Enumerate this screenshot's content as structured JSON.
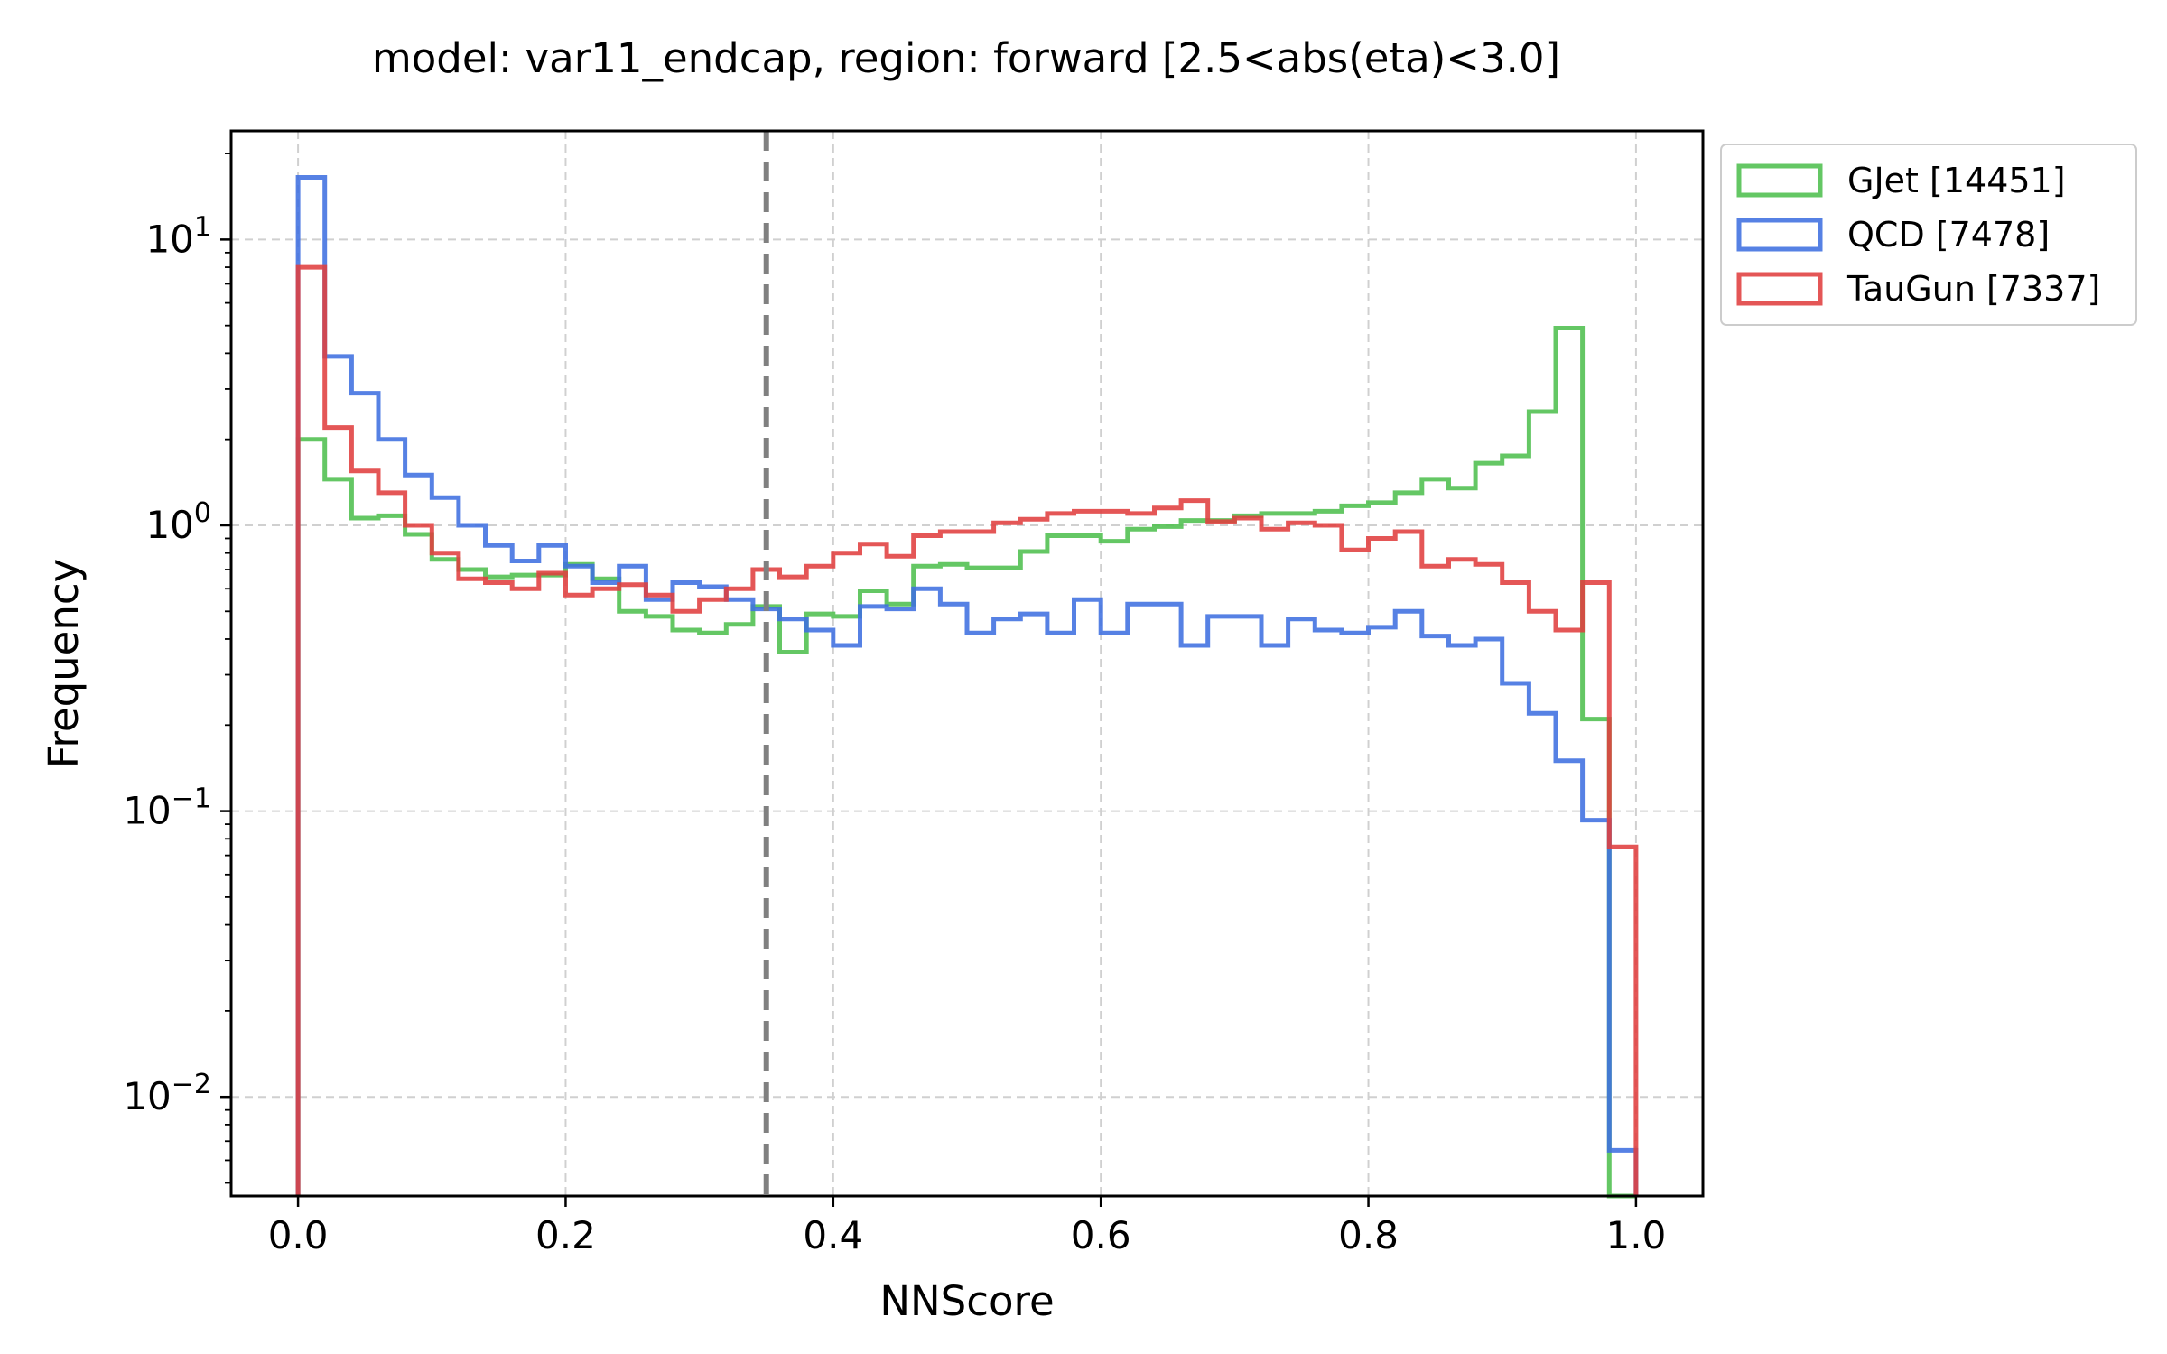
{
  "chart_data": {
    "type": "histogram-step",
    "title": "model: var11_endcap, region: forward [2.5<abs(eta)<3.0]",
    "xlabel": "NNScore",
    "ylabel": "Frequency",
    "xlim": [
      -0.05,
      1.05
    ],
    "ylim": [
      0.0045,
      24
    ],
    "yscale": "log",
    "grid": true,
    "legend_placement": "outside upper-right",
    "x_ticks": [
      {
        "value": 0.0,
        "label": "0.0"
      },
      {
        "value": 0.2,
        "label": "0.2"
      },
      {
        "value": 0.4,
        "label": "0.4"
      },
      {
        "value": 0.6,
        "label": "0.6"
      },
      {
        "value": 0.8,
        "label": "0.8"
      },
      {
        "value": 1.0,
        "label": "1.0"
      }
    ],
    "y_ticks": [
      {
        "value": 10,
        "base": "10",
        "exp": "1"
      },
      {
        "value": 1,
        "base": "10",
        "exp": "0"
      },
      {
        "value": 0.1,
        "base": "10",
        "exp": "−1"
      },
      {
        "value": 0.01,
        "base": "10",
        "exp": "−2"
      }
    ],
    "threshold_line": {
      "x": 0.35,
      "color": "#808080",
      "style": "dashed"
    },
    "bin_edges_range": [
      0.0,
      1.0
    ],
    "n_bins": 50,
    "series": [
      {
        "name": "GJet [14451]",
        "color": "#4fbf4f",
        "values": [
          2.0,
          1.45,
          1.06,
          1.08,
          0.93,
          0.76,
          0.7,
          0.66,
          0.67,
          0.67,
          0.73,
          0.65,
          0.5,
          0.48,
          0.43,
          0.42,
          0.45,
          0.52,
          0.36,
          0.49,
          0.48,
          0.59,
          0.53,
          0.72,
          0.73,
          0.71,
          0.71,
          0.81,
          0.92,
          0.92,
          0.88,
          0.97,
          0.99,
          1.04,
          1.04,
          1.08,
          1.1,
          1.1,
          1.12,
          1.17,
          1.2,
          1.3,
          1.45,
          1.35,
          1.65,
          1.75,
          2.5,
          4.9,
          0.21,
          0.0
        ]
      },
      {
        "name": "QCD [7478]",
        "color": "#3f6fe0",
        "values": [
          16.5,
          3.9,
          2.9,
          2.0,
          1.5,
          1.25,
          1.0,
          0.85,
          0.75,
          0.85,
          0.72,
          0.63,
          0.72,
          0.55,
          0.63,
          0.61,
          0.55,
          0.51,
          0.47,
          0.43,
          0.38,
          0.52,
          0.51,
          0.6,
          0.53,
          0.42,
          0.47,
          0.49,
          0.42,
          0.55,
          0.42,
          0.53,
          0.53,
          0.38,
          0.48,
          0.48,
          0.38,
          0.47,
          0.43,
          0.42,
          0.44,
          0.5,
          0.41,
          0.38,
          0.4,
          0.28,
          0.22,
          0.15,
          0.093,
          0.0065
        ]
      },
      {
        "name": "TauGun [7337]",
        "color": "#e03f3f",
        "values": [
          8.0,
          2.2,
          1.55,
          1.3,
          1.0,
          0.8,
          0.65,
          0.63,
          0.6,
          0.68,
          0.57,
          0.6,
          0.62,
          0.57,
          0.5,
          0.55,
          0.6,
          0.7,
          0.66,
          0.72,
          0.8,
          0.86,
          0.78,
          0.92,
          0.95,
          0.95,
          1.02,
          1.05,
          1.1,
          1.12,
          1.12,
          1.1,
          1.15,
          1.22,
          1.03,
          1.06,
          0.97,
          1.02,
          1.0,
          0.82,
          0.9,
          0.95,
          0.72,
          0.76,
          0.73,
          0.63,
          0.5,
          0.43,
          0.63,
          0.075
        ]
      }
    ]
  }
}
